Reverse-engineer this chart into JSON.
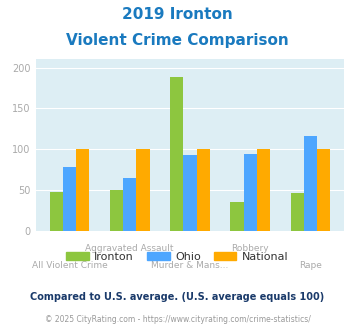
{
  "title_line1": "2019 Ironton",
  "title_line2": "Violent Crime Comparison",
  "categories_top": [
    "",
    "Aggravated Assault",
    "",
    "Robbery",
    ""
  ],
  "categories_bot": [
    "All Violent Crime",
    "",
    "Murder & Mans...",
    "",
    "Rape"
  ],
  "ironton": [
    48,
    50,
    188,
    35,
    46
  ],
  "ohio": [
    78,
    65,
    93,
    94,
    116
  ],
  "national": [
    100,
    100,
    100,
    100,
    100
  ],
  "ironton_color": "#8dc63f",
  "ohio_color": "#4da6ff",
  "national_color": "#ffaa00",
  "bg_color": "#ddeef4",
  "ylim": [
    0,
    210
  ],
  "yticks": [
    0,
    50,
    100,
    150,
    200
  ],
  "bar_width": 0.22,
  "legend_labels": [
    "Ironton",
    "Ohio",
    "National"
  ],
  "footnote1": "Compared to U.S. average. (U.S. average equals 100)",
  "footnote2": "© 2025 CityRating.com - https://www.cityrating.com/crime-statistics/",
  "title_color": "#1a7abf",
  "footnote1_color": "#1a3a6a",
  "footnote2_color": "#999999",
  "tick_color": "#aaaaaa",
  "label_color": "#aaaaaa"
}
